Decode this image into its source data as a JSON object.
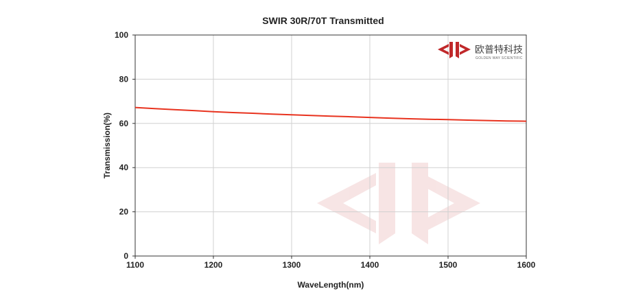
{
  "chart_data": {
    "type": "line",
    "title": "SWIR 30R/70T Transmitted",
    "xlabel": "WaveLength(nm)",
    "ylabel": "Transmission(%)",
    "xlim": [
      1100,
      1600
    ],
    "ylim": [
      0,
      100
    ],
    "xticks": [
      "1100",
      "1200",
      "1300",
      "1400",
      "1500",
      "1600"
    ],
    "yticks": [
      "0",
      "20",
      "40",
      "60",
      "80",
      "100"
    ],
    "grid": true,
    "legend": "none",
    "series": [
      {
        "color": "#e8321e",
        "x": [
          1100,
          1125,
          1150,
          1175,
          1200,
          1225,
          1250,
          1275,
          1300,
          1325,
          1350,
          1375,
          1400,
          1425,
          1450,
          1475,
          1500,
          1525,
          1550,
          1575,
          1600
        ],
        "y": [
          67.2,
          66.7,
          66.2,
          65.8,
          65.3,
          64.9,
          64.6,
          64.2,
          63.9,
          63.6,
          63.3,
          63.0,
          62.7,
          62.4,
          62.1,
          61.9,
          61.7,
          61.5,
          61.3,
          61.1,
          61.0
        ]
      }
    ]
  },
  "logo": {
    "cn": "欧普特科技",
    "en": "GOLDEN WAY SCIENTIFIC",
    "color": "#c0282a"
  }
}
